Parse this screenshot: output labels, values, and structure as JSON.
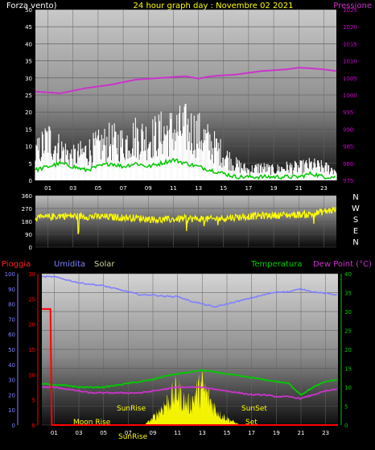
{
  "header": {
    "left_label": "Forza vento)",
    "title": "24 hour graph day : Novembre 02 2021",
    "right_label": "Pressione"
  },
  "colors": {
    "background": "#000000",
    "wind_avg": "#00c800",
    "wind_gust": "#ffffff",
    "wind_fill": "#c8e6c8",
    "pressure": "#cc33cc",
    "direction": "#ffff00",
    "humidity": "#8080ff",
    "rain": "#ff0000",
    "solar": "#ffff00",
    "temperature": "#00cc00",
    "dewpoint": "#cc33cc",
    "axis_green": "#00cc00",
    "axis_magenta": "#cc00cc"
  },
  "panel1": {
    "left_ticks": [
      "50",
      "45",
      "40",
      "35",
      "30",
      "25",
      "20",
      "15",
      "10",
      "5",
      "0"
    ],
    "right_ticks": [
      "1025",
      "1020",
      "1015",
      "1010",
      "1005",
      "1000",
      "995",
      "990",
      "985",
      "980",
      "975"
    ],
    "x_ticks": [
      "01",
      "03",
      "05",
      "07",
      "09",
      "11",
      "13",
      "15",
      "17",
      "19",
      "21",
      "23"
    ]
  },
  "panel2": {
    "left_ticks": [
      "360",
      "270",
      "180",
      "90",
      "0"
    ],
    "right_letters": [
      "N",
      "W",
      "S",
      "E",
      "N"
    ]
  },
  "panel3": {
    "labels": {
      "rain": "Pioggia",
      "humidity": "Umidita",
      "solar": "Solar",
      "temperature": "Temperatura",
      "dewpoint": "Dew Point (°C)"
    },
    "humidity_ticks": [
      "100",
      "90",
      "80",
      "70",
      "60",
      "50",
      "40",
      "30",
      "20",
      "10",
      "0"
    ],
    "rain_ticks": [
      "30",
      "25",
      "20",
      "15",
      "10",
      "5",
      "0"
    ],
    "temp_ticks": [
      "40",
      "35",
      "30",
      "25",
      "20",
      "15",
      "10",
      "5",
      "0"
    ],
    "x_ticks": [
      "01",
      "03",
      "05",
      "07",
      "09",
      "11",
      "13",
      "15",
      "17",
      "19",
      "21",
      "23"
    ],
    "annotations": {
      "moon_rise": "Moon Rise",
      "sun_rise_upper": "SunRise",
      "sun_rise_lower": "SunRise",
      "sun_set_upper": "SunSet",
      "sun_set_lower": "Set"
    }
  },
  "chart_data": [
    {
      "type": "line",
      "description_of_axes": "hours 0-24; left axis wind 0-50, right axis pressure 975-1025",
      "ylim_left": [
        0,
        50
      ],
      "ylim_right": [
        975,
        1025
      ],
      "x_range": [
        0,
        24
      ],
      "series": [
        {
          "name": "Pressione",
          "axis": "right",
          "x": [
            0,
            2,
            4,
            6,
            8,
            10,
            12,
            13,
            14,
            16,
            18,
            20,
            21,
            22,
            23,
            24
          ],
          "values": [
            1001,
            1000.5,
            1002,
            1003,
            1004.5,
            1005,
            1005.5,
            1004.8,
            1005.5,
            1006,
            1007,
            1007.5,
            1008,
            1007.8,
            1007.5,
            1007
          ]
        },
        {
          "name": "gust",
          "axis": "left",
          "x": [
            0,
            1,
            2,
            3,
            4,
            5,
            6,
            7,
            8,
            9,
            10,
            11,
            12,
            13,
            14,
            15,
            16,
            17,
            18,
            19,
            20,
            21,
            22,
            23,
            24
          ],
          "values": [
            10,
            16,
            12,
            9,
            11,
            13,
            15,
            14,
            17,
            16,
            18,
            19,
            20,
            18,
            14,
            10,
            6,
            4,
            5,
            4,
            5,
            5,
            6,
            5,
            4
          ]
        },
        {
          "name": "avg",
          "axis": "left",
          "x": [
            0,
            1,
            2,
            3,
            4,
            5,
            6,
            7,
            8,
            9,
            10,
            11,
            12,
            13,
            14,
            15,
            16,
            17,
            18,
            19,
            20,
            21,
            22,
            23,
            24
          ],
          "values": [
            3,
            4,
            5,
            4,
            3,
            4,
            5,
            4,
            5,
            4,
            5,
            6,
            5,
            4,
            3,
            2,
            1,
            1,
            1,
            1,
            1,
            1,
            2,
            1,
            1
          ]
        }
      ]
    },
    {
      "type": "line",
      "description_of_axes": "wind direction 0-360 degrees",
      "ylim": [
        0,
        360
      ],
      "x_range": [
        0,
        24
      ],
      "series": [
        {
          "name": "direction",
          "x": [
            0,
            2,
            4,
            6,
            8,
            10,
            12,
            14,
            16,
            18,
            20,
            22,
            23,
            24
          ],
          "values": [
            200,
            220,
            215,
            210,
            205,
            190,
            200,
            195,
            210,
            220,
            225,
            230,
            250,
            260
          ]
        }
      ]
    },
    {
      "type": "line",
      "description_of_axes": "humidity 0-100 (left), rain 0-30 (left inner), temperature 0-40 (right)",
      "ylim_humidity": [
        0,
        100
      ],
      "ylim_rain": [
        0,
        30
      ],
      "ylim_temp": [
        0,
        40
      ],
      "x_range": [
        0,
        24
      ],
      "series": [
        {
          "name": "Umidita",
          "axis": "humidity",
          "x": [
            0,
            1,
            2,
            3,
            4,
            5,
            6,
            7,
            8,
            9,
            10,
            11,
            12,
            13,
            14,
            15,
            16,
            17,
            18,
            19,
            20,
            21,
            22,
            23,
            24
          ],
          "values": [
            98,
            98,
            96,
            94,
            93,
            92,
            90,
            88,
            86,
            86,
            85,
            85,
            82,
            80,
            78,
            80,
            82,
            84,
            86,
            88,
            88,
            90,
            88,
            87,
            86
          ]
        },
        {
          "name": "Temperatura",
          "axis": "temp",
          "x": [
            0,
            1,
            2,
            3,
            4,
            5,
            6,
            7,
            8,
            9,
            10,
            11,
            12,
            13,
            14,
            15,
            16,
            17,
            18,
            19,
            20,
            21,
            22,
            23,
            24
          ],
          "values": [
            11,
            10.5,
            10.5,
            10,
            10,
            10,
            10.5,
            11,
            11.5,
            12,
            13,
            13.5,
            14,
            14.5,
            14,
            13.5,
            13,
            12.5,
            12,
            11.5,
            11,
            8,
            10,
            11.5,
            12
          ]
        },
        {
          "name": "Dew Point (°C)",
          "axis": "temp",
          "x": [
            0,
            1,
            2,
            3,
            4,
            5,
            6,
            7,
            8,
            9,
            10,
            11,
            12,
            13,
            14,
            15,
            16,
            17,
            18,
            19,
            20,
            21,
            22,
            23,
            24
          ],
          "values": [
            10,
            10,
            9.5,
            9,
            8.5,
            8.5,
            8.5,
            8.5,
            8.5,
            9,
            9.5,
            10,
            10,
            10,
            9.5,
            9,
            8.5,
            8,
            8,
            7.5,
            7.5,
            7,
            8,
            9,
            9.5
          ]
        },
        {
          "name": "Pioggia",
          "axis": "rain",
          "x": [
            0,
            0.7,
            0.8,
            24
          ],
          "values": [
            23,
            23,
            0,
            0
          ]
        },
        {
          "name": "Solar",
          "axis": "temp",
          "x": [
            8.3,
            9,
            10,
            10.5,
            11,
            11.5,
            12,
            12.5,
            13,
            13.5,
            14,
            14.5,
            15,
            15.5,
            16.1
          ],
          "values": [
            0,
            2,
            6,
            8,
            10,
            7,
            6,
            9,
            11,
            8,
            5,
            3,
            2,
            1,
            0
          ]
        }
      ]
    }
  ]
}
